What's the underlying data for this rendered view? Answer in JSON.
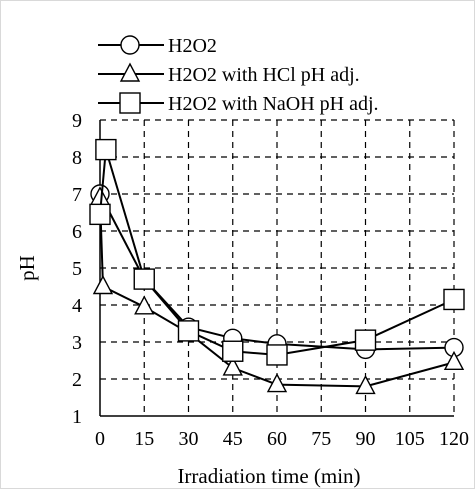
{
  "chart_data": {
    "type": "line",
    "title": "",
    "xlabel": "Irradiation time (min)",
    "ylabel": "pH",
    "xlim": [
      0,
      120
    ],
    "ylim": [
      1,
      9
    ],
    "xticks": [
      0,
      15,
      30,
      45,
      60,
      75,
      90,
      105,
      120
    ],
    "yticks": [
      1,
      2,
      3,
      4,
      5,
      6,
      7,
      8,
      9
    ],
    "grid": true,
    "legend_position": "top",
    "series": [
      {
        "name": "H2O2",
        "marker": "circle",
        "points": [
          [
            0,
            7.0
          ],
          [
            15,
            4.7
          ],
          [
            30,
            3.4
          ],
          [
            45,
            3.1
          ],
          [
            60,
            2.95
          ],
          [
            90,
            2.8
          ],
          [
            120,
            2.85
          ]
        ]
      },
      {
        "name": "H2O2 with HCl pH adj.",
        "marker": "triangle",
        "points": [
          [
            0,
            6.9
          ],
          [
            1,
            4.5
          ],
          [
            15,
            3.95
          ],
          [
            30,
            3.25
          ],
          [
            45,
            2.3
          ],
          [
            60,
            1.85
          ],
          [
            90,
            1.8
          ],
          [
            120,
            2.45
          ]
        ]
      },
      {
        "name": "H2O2 with NaOH pH adj.",
        "marker": "square",
        "points": [
          [
            0,
            6.45
          ],
          [
            2,
            8.2
          ],
          [
            15,
            4.7
          ],
          [
            30,
            3.3
          ],
          [
            45,
            2.75
          ],
          [
            60,
            2.65
          ],
          [
            90,
            3.05
          ],
          [
            120,
            4.15
          ]
        ]
      }
    ]
  }
}
